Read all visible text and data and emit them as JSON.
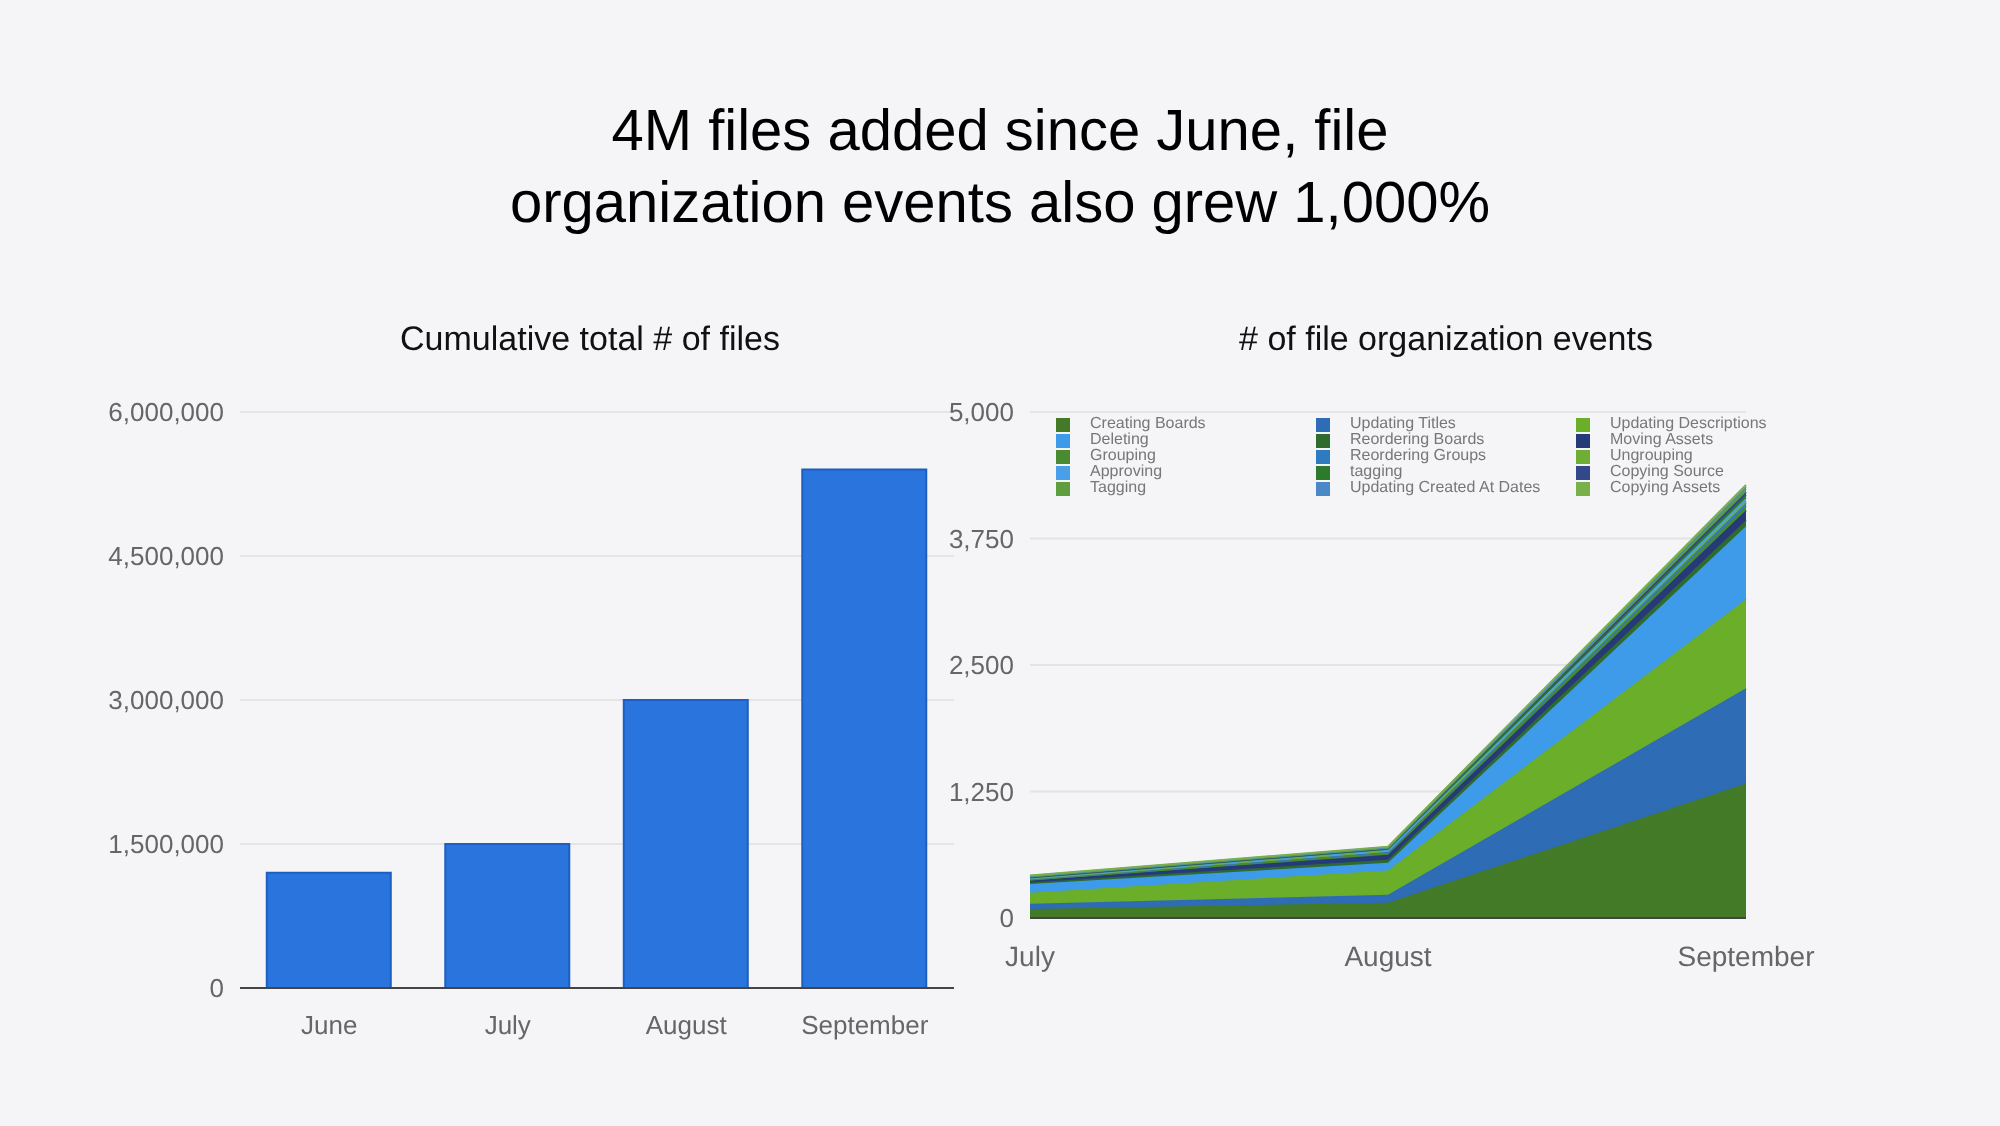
{
  "chart_data": [
    {
      "type": "bar",
      "title": "4M files added since June, file organization events also grew 1,000%",
      "subtitle": "Cumulative total # of files",
      "categories": [
        "June",
        "July",
        "August",
        "September"
      ],
      "values": [
        1200000,
        1500000,
        3000000,
        5400000
      ],
      "color": "#2a75dd",
      "ylim": [
        0,
        6000000
      ],
      "yticks": [
        0,
        {
          "value": 1500000,
          "label": "1,500,000"
        },
        {
          "value": 3000000,
          "label": "3,000,000"
        },
        {
          "value": 4500000,
          "label": "4,500,000"
        },
        {
          "value": 6000000,
          "label": "6,000,000"
        }
      ],
      "grid": "y"
    },
    {
      "type": "area",
      "subtitle": "# of file organization events",
      "stacked": true,
      "categories": [
        "July",
        "August",
        "September"
      ],
      "ylim": [
        0,
        5000
      ],
      "yticks": [
        0,
        {
          "value": 1250,
          "label": "1,250"
        },
        {
          "value": 2500,
          "label": "2,500"
        },
        {
          "value": 3750,
          "label": "3,750"
        },
        {
          "value": 5000,
          "label": "5,000"
        }
      ],
      "grid": "y",
      "legend": "top left",
      "series": [
        {
          "name": "Creating Boards",
          "color": "#437a27",
          "values": [
            90,
            150,
            1330
          ]
        },
        {
          "name": "Updating Titles",
          "color": "#2e6cb5",
          "values": [
            50,
            80,
            940
          ]
        },
        {
          "name": "Updating Descriptions",
          "color": "#6aae2a",
          "values": [
            110,
            240,
            880
          ]
        },
        {
          "name": "Deleting",
          "color": "#3d9be9",
          "values": [
            85,
            75,
            720
          ]
        },
        {
          "name": "Reordering Boards",
          "color": "#2f6b2f",
          "values": [
            15,
            30,
            60
          ]
        },
        {
          "name": "Moving Assets",
          "color": "#263a7a",
          "values": [
            20,
            50,
            100
          ]
        },
        {
          "name": "Grouping",
          "color": "#4a8a30",
          "values": [
            10,
            20,
            40
          ]
        },
        {
          "name": "Reordering Groups",
          "color": "#2f7bc0",
          "values": [
            5,
            10,
            30
          ]
        },
        {
          "name": "Ungrouping",
          "color": "#6fae35",
          "values": [
            5,
            10,
            20
          ]
        },
        {
          "name": "Approving",
          "color": "#4aa0e8",
          "values": [
            5,
            10,
            30
          ]
        },
        {
          "name": "tagging",
          "color": "#2d7a2d",
          "values": [
            5,
            10,
            30
          ]
        },
        {
          "name": "Copying Source",
          "color": "#34478a",
          "values": [
            5,
            5,
            30
          ]
        },
        {
          "name": "Tagging",
          "color": "#5f9e3e",
          "values": [
            5,
            5,
            30
          ]
        },
        {
          "name": "Updating Created At Dates",
          "color": "#4a88c8",
          "values": [
            5,
            5,
            20
          ]
        },
        {
          "name": "Copying Assets",
          "color": "#7ab04a",
          "values": [
            5,
            5,
            20
          ]
        }
      ]
    }
  ]
}
